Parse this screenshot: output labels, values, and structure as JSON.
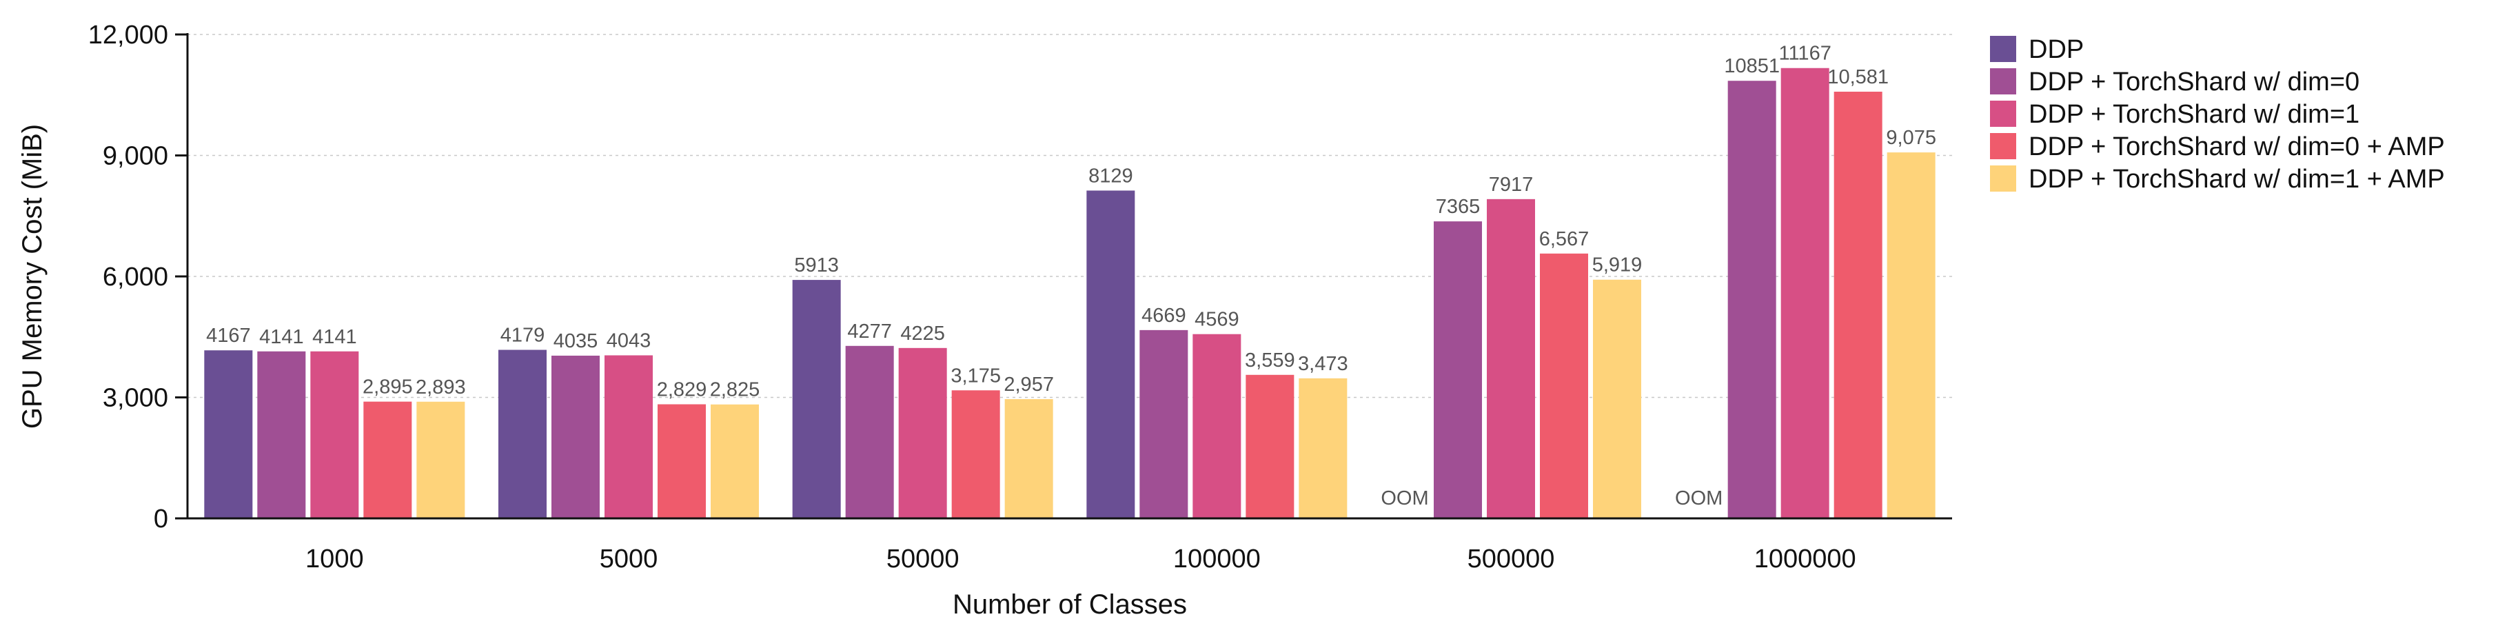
{
  "chart_data": {
    "type": "bar",
    "title": "",
    "xlabel": "Number of Classes",
    "ylabel": "GPU Memory Cost (MiB)",
    "ylim": [
      0,
      12000
    ],
    "yticks": [
      0,
      3000,
      6000,
      9000,
      12000
    ],
    "ytick_labels": [
      "0",
      "3,000",
      "6,000",
      "9,000",
      "12,000"
    ],
    "grid": "horizontal dotted",
    "legend_position": "right",
    "categories": [
      "1000",
      "5000",
      "50000",
      "100000",
      "500000",
      "1000000"
    ],
    "series": [
      {
        "name": "DDP",
        "color": "#6a4f94",
        "values": [
          4167,
          4179,
          5913,
          8129,
          null,
          null
        ],
        "labels": [
          "4167",
          "4179",
          "5913",
          "8129",
          "OOM",
          "OOM"
        ]
      },
      {
        "name": "DDP + TorchShard w/ dim=0",
        "color": "#a04f94",
        "values": [
          4141,
          4035,
          4277,
          4669,
          7365,
          10851
        ],
        "labels": [
          "4141",
          "4035",
          "4277",
          "4669",
          "7365",
          "10851"
        ]
      },
      {
        "name": "DDP + TorchShard w/ dim=1",
        "color": "#d74f85",
        "values": [
          4141,
          4043,
          4225,
          4569,
          7917,
          11167
        ],
        "labels": [
          "4141",
          "4043",
          "4225",
          "4569",
          "7917",
          "11167"
        ]
      },
      {
        "name": "DDP + TorchShard w/ dim=0 + AMP",
        "color": "#ef5b6c",
        "values": [
          2895,
          2829,
          3175,
          3559,
          6567,
          10581
        ],
        "labels": [
          "2,895",
          "2,829",
          "3,175",
          "3,559",
          "6,567",
          "10,581"
        ]
      },
      {
        "name": "DDP + TorchShard w/ dim=1 + AMP",
        "color": "#fed37a",
        "values": [
          2893,
          2825,
          2957,
          3473,
          5919,
          9075
        ],
        "labels": [
          "2,893",
          "2,825",
          "2,957",
          "3,473",
          "5,919",
          "9,075"
        ]
      }
    ]
  }
}
